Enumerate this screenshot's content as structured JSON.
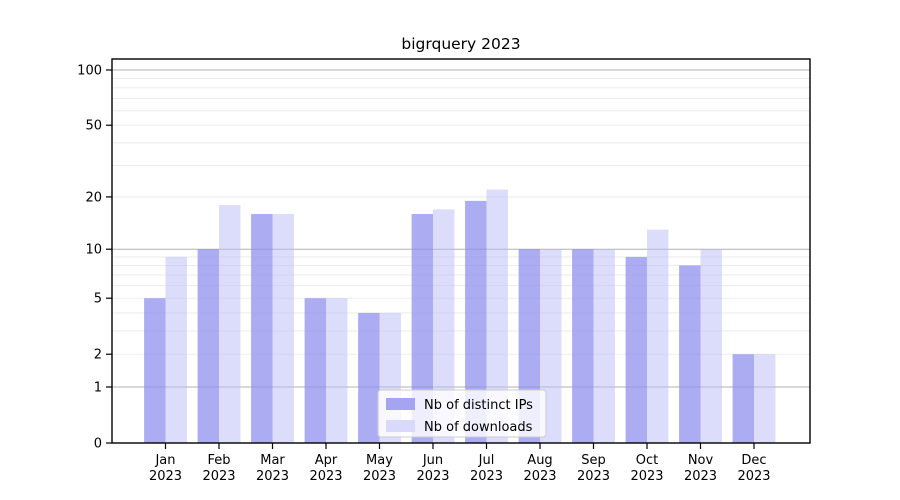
{
  "chart_data": {
    "type": "bar",
    "title": "bigrquery 2023",
    "categories": [
      "Jan",
      "Feb",
      "Mar",
      "Apr",
      "May",
      "Jun",
      "Jul",
      "Aug",
      "Sep",
      "Oct",
      "Nov",
      "Dec"
    ],
    "category_year": "2023",
    "series": [
      {
        "name": "Nb of distinct IPs",
        "values": [
          5,
          10,
          16,
          5,
          4,
          16,
          19,
          10,
          10,
          9,
          8,
          2
        ],
        "color": "#8c8cee",
        "fill_opacity": 0.72,
        "legend_swatch_color": "#a4a4f1"
      },
      {
        "name": "Nb of downloads",
        "values": [
          9,
          18,
          16,
          5,
          4,
          17,
          22,
          10,
          10,
          13,
          10,
          2
        ],
        "color": "#b9b9f7",
        "fill_opacity": 0.5,
        "legend_swatch_color": "#d9d9fa"
      }
    ],
    "xlabel": "",
    "ylabel": "",
    "yscale": "log1p",
    "ylim": [
      0,
      117
    ],
    "ytick_labels": [
      "100",
      "50",
      "20",
      "10",
      "5",
      "2",
      "1",
      "0"
    ],
    "ytick_values": [
      100,
      50,
      20,
      10,
      5,
      2,
      1,
      0
    ],
    "major_grid_values": [
      1,
      10,
      100
    ],
    "minor_grid_values": [
      2,
      3,
      4,
      5,
      6,
      7,
      8,
      9,
      20,
      30,
      40,
      50,
      60,
      70,
      80,
      90
    ],
    "grid": true,
    "legend": {
      "position": "lower center",
      "labels": [
        "Nb of distinct IPs",
        "Nb of downloads"
      ]
    },
    "colors": {
      "major_grid": "#b2b2b2",
      "minor_grid": "#e9e9e9",
      "axis": "#000000",
      "text": "#000000",
      "legend_bg": "rgba(255,255,255,0.8)",
      "legend_border": "#cccccc"
    }
  }
}
